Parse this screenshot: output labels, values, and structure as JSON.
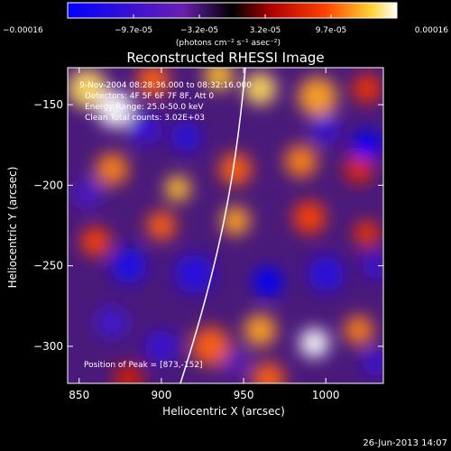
{
  "chart_data": {
    "type": "heatmap",
    "title": "Reconstructed RHESSI Image",
    "xlabel": "Heliocentric X (arcsec)",
    "ylabel": "Heliocentric Y (arcsec)",
    "xlim": [
      843,
      1035
    ],
    "ylim": [
      -323,
      -127
    ],
    "x_ticks": [
      850,
      900,
      950,
      1000
    ],
    "y_ticks": [
      -150,
      -200,
      -250,
      -300
    ],
    "colorbar": {
      "range": [
        -0.00016,
        0.00016
      ],
      "tick_labels": [
        "-0.00016",
        "-9.7e-05",
        "-3.2e-05",
        "3.2e-05",
        "9.7e-05",
        "0.00016"
      ],
      "unit_label": "(photons cm⁻² s⁻¹ asec⁻²)",
      "colors": [
        "#0000ff",
        "#7020a0",
        "#000000",
        "#c00000",
        "#ff6000",
        "#ffff40",
        "#ffffff"
      ]
    },
    "annotations": [
      "9-Nov-2004 08:28:36.000 to 08:32:16.000",
      "Detectors: 4F 5F 6F 7F 8F, Att 0",
      "Energy Range: 25.0-50.0 keV",
      "Clean    Total counts: 3.02E+03"
    ],
    "peak_label": "Position of Peak = [873,-152]",
    "blobs": [
      {
        "x": 855,
        "y": -140,
        "v": 0.00014,
        "s": 12
      },
      {
        "x": 872,
        "y": -153,
        "v": 0.00016,
        "s": 11
      },
      {
        "x": 895,
        "y": -135,
        "v": 0.0001,
        "s": 10
      },
      {
        "x": 935,
        "y": -132,
        "v": 0.00013,
        "s": 9
      },
      {
        "x": 960,
        "y": -140,
        "v": 0.00014,
        "s": 10
      },
      {
        "x": 995,
        "y": -145,
        "v": 0.00012,
        "s": 12
      },
      {
        "x": 1025,
        "y": -140,
        "v": 8e-05,
        "s": 9
      },
      {
        "x": 870,
        "y": -190,
        "v": 0.00011,
        "s": 10
      },
      {
        "x": 910,
        "y": -202,
        "v": 0.00013,
        "s": 8
      },
      {
        "x": 945,
        "y": -190,
        "v": 0.0001,
        "s": 10
      },
      {
        "x": 985,
        "y": -185,
        "v": 0.00011,
        "s": 10
      },
      {
        "x": 1020,
        "y": -190,
        "v": 7e-05,
        "s": 9
      },
      {
        "x": 860,
        "y": -235,
        "v": 9e-05,
        "s": 9
      },
      {
        "x": 900,
        "y": -225,
        "v": 0.0001,
        "s": 9
      },
      {
        "x": 945,
        "y": -222,
        "v": 0.00012,
        "s": 9
      },
      {
        "x": 990,
        "y": -220,
        "v": 9e-05,
        "s": 10
      },
      {
        "x": 1025,
        "y": -230,
        "v": 8e-05,
        "s": 8
      },
      {
        "x": 930,
        "y": -300,
        "v": 0.0001,
        "s": 12
      },
      {
        "x": 960,
        "y": -290,
        "v": 0.00012,
        "s": 10
      },
      {
        "x": 993,
        "y": -298,
        "v": 0.00016,
        "s": 9
      },
      {
        "x": 1020,
        "y": -290,
        "v": 0.00011,
        "s": 9
      },
      {
        "x": 965,
        "y": -320,
        "v": 0.0001,
        "s": 10
      },
      {
        "x": 880,
        "y": -320,
        "v": 6e-05,
        "s": 9
      },
      {
        "x": 890,
        "y": -165,
        "v": -0.0001,
        "s": 10
      },
      {
        "x": 915,
        "y": -170,
        "v": -0.00012,
        "s": 9
      },
      {
        "x": 1000,
        "y": -165,
        "v": -0.0001,
        "s": 9
      },
      {
        "x": 1025,
        "y": -175,
        "v": -0.00016,
        "s": 9
      },
      {
        "x": 855,
        "y": -205,
        "v": -8e-05,
        "s": 9
      },
      {
        "x": 880,
        "y": -250,
        "v": -0.00013,
        "s": 11
      },
      {
        "x": 920,
        "y": -255,
        "v": -0.00012,
        "s": 12
      },
      {
        "x": 965,
        "y": -260,
        "v": -0.00016,
        "s": 9
      },
      {
        "x": 1000,
        "y": -255,
        "v": -0.00012,
        "s": 11
      },
      {
        "x": 1030,
        "y": -250,
        "v": -0.0001,
        "s": 8
      },
      {
        "x": 870,
        "y": -285,
        "v": -9e-05,
        "s": 10
      },
      {
        "x": 900,
        "y": -300,
        "v": -0.0001,
        "s": 10
      },
      {
        "x": 945,
        "y": -310,
        "v": -6e-05,
        "s": 8
      },
      {
        "x": 1030,
        "y": -310,
        "v": -0.0001,
        "s": 8
      }
    ]
  },
  "footer": {
    "timestamp": "26-Jun-2013 14:07"
  }
}
